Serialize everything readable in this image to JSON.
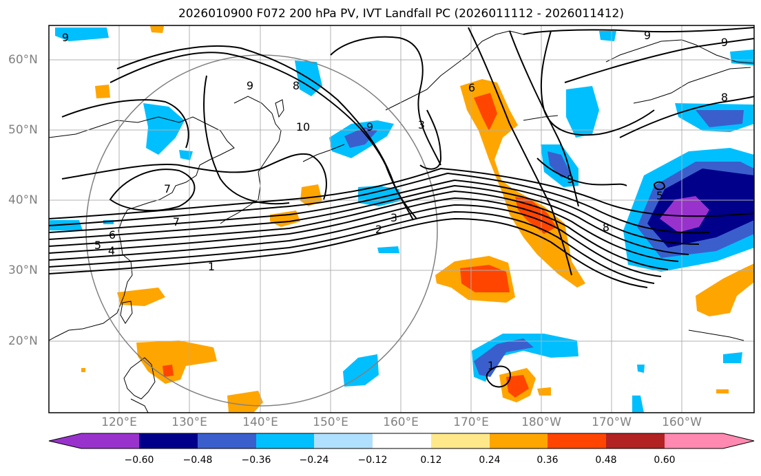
{
  "title": "2026010900 F072 200 hPa PV, IVT Landfall PC (2026011112 - 2026011412)",
  "lat_labels": [
    "60°N",
    "50°N",
    "40°N",
    "30°N",
    "20°N"
  ],
  "lon_labels": [
    "120°E",
    "130°E",
    "140°E",
    "150°E",
    "160°E",
    "170°E",
    "180°W",
    "170°W",
    "160°W"
  ],
  "contour_labels": [
    "9",
    "9",
    "9",
    "8",
    "8",
    "10",
    "3",
    "9",
    "7",
    "7",
    "6",
    "5",
    "4",
    "1",
    "2",
    "3",
    "8",
    "9",
    "1",
    "6",
    "9",
    "5"
  ],
  "colorbar": {
    "ticks": [
      "−0.60",
      "−0.48",
      "−0.36",
      "−0.24",
      "−0.12",
      "0.12",
      "0.24",
      "0.36",
      "0.48",
      "0.60"
    ],
    "colors": [
      "#9932cc",
      "#00008b",
      "#3a5fcd",
      "#00bfff",
      "#b0e0ff",
      "#ffffff",
      "#ffe88a",
      "#ffa500",
      "#ff4500",
      "#b22222",
      "#ff89b0"
    ]
  }
}
